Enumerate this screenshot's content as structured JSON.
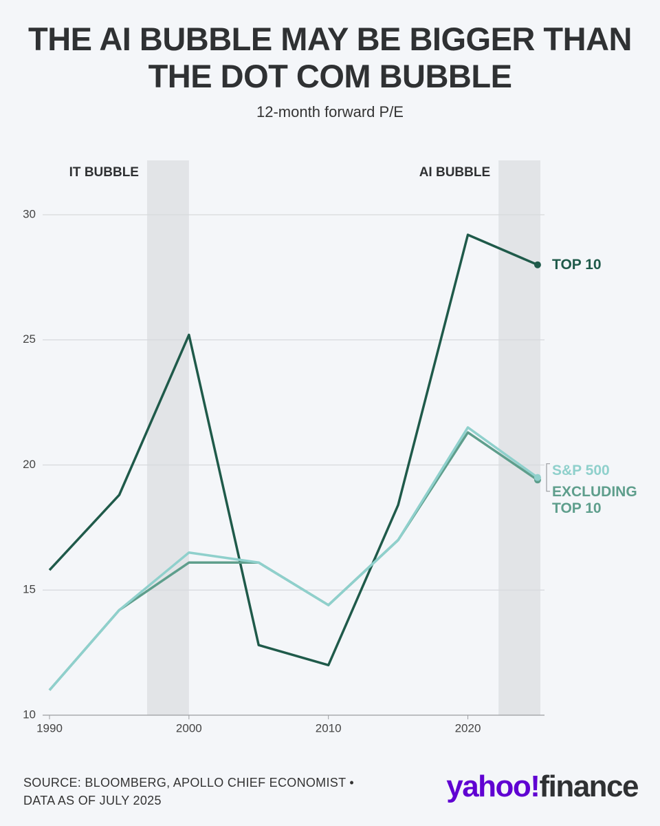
{
  "chart_data": {
    "type": "line",
    "title": "THE AI BUBBLE MAY BE BIGGER THAN THE DOT COM BUBBLE",
    "subtitle": "12-month forward P/E",
    "x": [
      1990,
      1995,
      2000,
      2005,
      2010,
      2015,
      2020,
      2025
    ],
    "series": [
      {
        "name": "TOP 10",
        "color": "#1f5a4a",
        "values": [
          15.8,
          18.8,
          25.2,
          12.8,
          12.0,
          18.4,
          29.2,
          28.0
        ]
      },
      {
        "name": "EXCLUDING TOP 10",
        "color": "#5e9e8c",
        "values": [
          11.0,
          14.2,
          16.1,
          16.1,
          14.4,
          17.0,
          21.3,
          19.4
        ]
      },
      {
        "name": "S&P 500",
        "color": "#8fd0cc",
        "values": [
          11.0,
          14.2,
          16.5,
          16.1,
          14.4,
          17.0,
          21.5,
          19.5
        ]
      }
    ],
    "bands": [
      {
        "label": "IT BUBBLE",
        "start": 1997,
        "end": 2000
      },
      {
        "label": "AI BUBBLE",
        "start": 2022.2,
        "end": 2025.2
      }
    ],
    "xlim": [
      1990,
      2025.2
    ],
    "xticks": [
      1990,
      2000,
      2010,
      2020
    ],
    "ylim": [
      10,
      30
    ],
    "yticks": [
      10,
      15,
      20,
      25,
      30
    ],
    "grid": true,
    "source": "SOURCE: BLOOMBERG, APOLLO CHIEF ECONOMIST • DATA AS OF JULY 2025",
    "logo": {
      "brand": "yahoo!",
      "product": "finance"
    }
  }
}
